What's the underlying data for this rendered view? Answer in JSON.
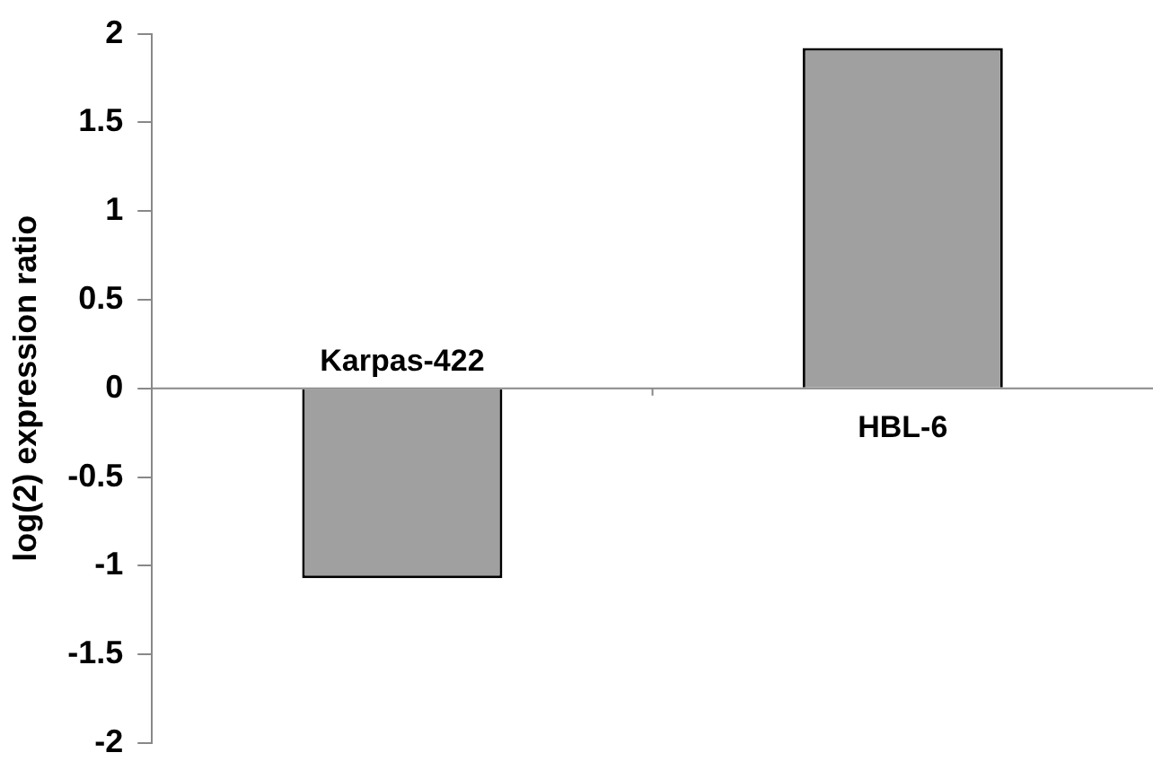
{
  "chart_data": {
    "type": "bar",
    "ylabel": "log(2) expression ratio",
    "categories": [
      "Karpas-422",
      "HBL-6"
    ],
    "values": [
      -1.07,
      1.92
    ],
    "color": "#a0a0a0",
    "ylim": [
      -2,
      2
    ],
    "yticks": [
      -2,
      -1.5,
      -1,
      -0.5,
      0,
      0.5,
      1,
      1.5,
      2
    ]
  }
}
